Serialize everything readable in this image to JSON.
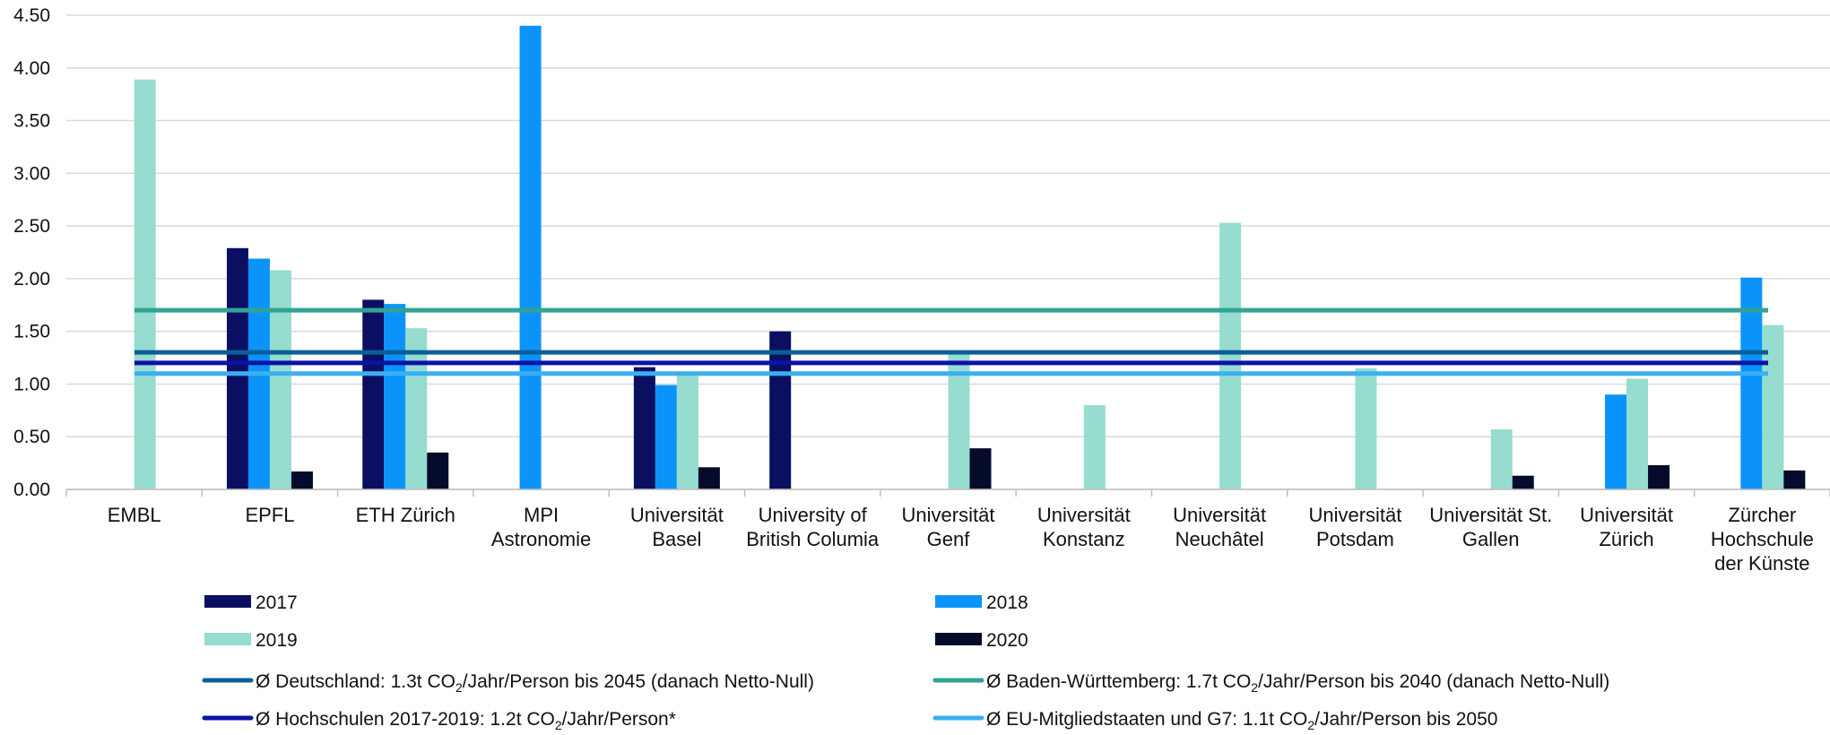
{
  "chart_data": {
    "type": "bar",
    "categories": [
      [
        "EMBL"
      ],
      [
        "EPFL"
      ],
      [
        "ETH Zürich"
      ],
      [
        "MPI",
        "Astronomie"
      ],
      [
        "Universität",
        "Basel"
      ],
      [
        "University of",
        "British Columia"
      ],
      [
        "Universität",
        "Genf"
      ],
      [
        "Universität",
        "Konstanz"
      ],
      [
        "Universität",
        "Neuchâtel"
      ],
      [
        "Universität",
        "Potsdam"
      ],
      [
        "Universität St.",
        "Gallen"
      ],
      [
        "Universität",
        "Zürich"
      ],
      [
        "Zürcher",
        "Hochschule",
        "der Künste"
      ]
    ],
    "series": [
      {
        "name": "2017",
        "color": "#0a0f62",
        "values": [
          null,
          2.29,
          1.8,
          null,
          1.16,
          1.5,
          null,
          null,
          null,
          null,
          null,
          null,
          null
        ]
      },
      {
        "name": "2018",
        "color": "#0a94fb",
        "values": [
          null,
          2.19,
          1.76,
          4.4,
          0.99,
          null,
          null,
          null,
          null,
          null,
          null,
          0.9,
          2.01
        ]
      },
      {
        "name": "2019",
        "color": "#96dccf",
        "values": [
          3.89,
          2.08,
          1.53,
          null,
          1.09,
          null,
          1.28,
          0.8,
          2.53,
          1.15,
          0.57,
          1.05,
          1.56
        ]
      },
      {
        "name": "2020",
        "color": "#050b2b",
        "values": [
          null,
          0.17,
          0.35,
          null,
          0.21,
          null,
          0.39,
          null,
          null,
          null,
          0.13,
          0.23,
          0.18
        ]
      }
    ],
    "reference_lines": [
      {
        "legend_prefix": "Ø Deutschland: 1.3t CO",
        "legend_sub": "2",
        "legend_suffix": "/Jahr/Person bis 2045 (danach Netto-Null)",
        "value": 1.3,
        "color": "#0c5f96"
      },
      {
        "legend_prefix": "Ø Baden-Württemberg: 1.7t CO",
        "legend_sub": "2",
        "legend_suffix": "/Jahr/Person bis 2040 (danach Netto-Null)",
        "value": 1.7,
        "color": "#31a394"
      },
      {
        "legend_prefix": "Ø Hochschulen 2017-2019: 1.2t CO",
        "legend_sub": "2",
        "legend_suffix": "/Jahr/Person*",
        "value": 1.2,
        "color": "#0a12a8"
      },
      {
        "legend_prefix": "Ø EU-Mitgliedstaaten und G7: 1.1t CO",
        "legend_sub": "2",
        "legend_suffix": "/Jahr/Person bis 2050",
        "value": 1.1,
        "color": "#3ab0f2"
      }
    ],
    "y_ticks": [
      "0.00",
      "0.50",
      "1.00",
      "1.50",
      "2.00",
      "2.50",
      "3.00",
      "3.50",
      "4.00",
      "4.50"
    ],
    "ylim": [
      0,
      4.5
    ],
    "grid": true,
    "legend_position": "bottom"
  }
}
